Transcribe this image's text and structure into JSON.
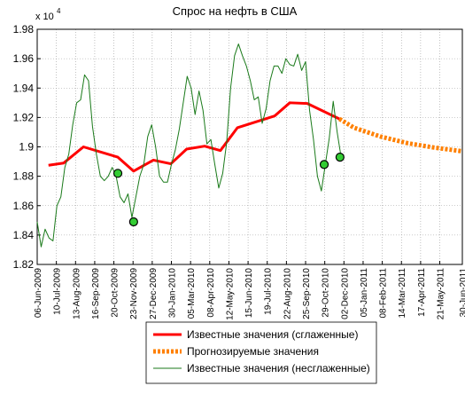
{
  "chart_data": {
    "type": "line",
    "title": "Спрос на нефть в США",
    "y_multiplier": {
      "base": "x 10",
      "exponent": "4"
    },
    "xlim": [
      "2009-06-06",
      "2011-06-30"
    ],
    "xticks": [
      {
        "value": "2009-06-06",
        "label": "06-Jun-2009"
      },
      {
        "value": "2009-07-10",
        "label": "10-Jul-2009"
      },
      {
        "value": "2009-08-13",
        "label": "13-Aug-2009"
      },
      {
        "value": "2009-09-16",
        "label": "16-Sep-2009"
      },
      {
        "value": "2009-10-20",
        "label": "20-Oct-2009"
      },
      {
        "value": "2009-11-23",
        "label": "23-Nov-2009"
      },
      {
        "value": "2009-12-27",
        "label": "27-Dec-2009"
      },
      {
        "value": "2010-01-30",
        "label": "30-Jan-2010"
      },
      {
        "value": "2010-03-05",
        "label": "05-Mar-2010"
      },
      {
        "value": "2010-04-08",
        "label": "08-Apr-2010"
      },
      {
        "value": "2010-05-12",
        "label": "12-May-2010"
      },
      {
        "value": "2010-06-15",
        "label": "15-Jun-2010"
      },
      {
        "value": "2010-07-19",
        "label": "19-Jul-2010"
      },
      {
        "value": "2010-08-22",
        "label": "22-Aug-2010"
      },
      {
        "value": "2010-09-25",
        "label": "25-Sep-2010"
      },
      {
        "value": "2010-10-29",
        "label": "29-Oct-2010"
      },
      {
        "value": "2010-12-02",
        "label": "02-Dec-2010"
      },
      {
        "value": "2011-01-05",
        "label": "05-Jan-2011"
      },
      {
        "value": "2011-02-08",
        "label": "08-Feb-2011"
      },
      {
        "value": "2011-03-14",
        "label": "14-Mar-2011"
      },
      {
        "value": "2011-04-17",
        "label": "17-Apr-2011"
      },
      {
        "value": "2011-05-21",
        "label": "21-May-2011"
      },
      {
        "value": "2011-06-30",
        "label": "30-Jun-2011"
      }
    ],
    "ylim": [
      1.82,
      1.98
    ],
    "yticks": [
      {
        "value": 1.82,
        "label": "1.82"
      },
      {
        "value": 1.84,
        "label": "1.84"
      },
      {
        "value": 1.86,
        "label": "1.86"
      },
      {
        "value": 1.88,
        "label": "1.88"
      },
      {
        "value": 1.9,
        "label": "1.9"
      },
      {
        "value": 1.92,
        "label": "1.92"
      },
      {
        "value": 1.94,
        "label": "1.94"
      },
      {
        "value": 1.96,
        "label": "1.96"
      },
      {
        "value": 1.98,
        "label": "1.98"
      }
    ],
    "grid": true,
    "legend": "bottom",
    "series": [
      {
        "name": "Известные значения (сглаженные)",
        "color": "#ff0000",
        "width": 3,
        "dashed": false,
        "x": [
          "2009-06-26",
          "2009-07-23",
          "2009-08-27",
          "2009-10-27",
          "2009-11-24",
          "2009-12-29",
          "2010-01-29",
          "2010-02-26",
          "2010-03-30",
          "2010-04-27",
          "2010-05-27",
          "2010-08-01",
          "2010-08-28",
          "2010-09-28",
          "2010-11-24"
        ],
        "values": [
          1.8875,
          1.889,
          1.9,
          1.893,
          1.8835,
          1.891,
          1.8885,
          1.8985,
          1.9005,
          1.8975,
          1.913,
          1.921,
          1.93,
          1.9295,
          1.919
        ]
      },
      {
        "name": "Прогнозируемые значения",
        "color": "#ff8000",
        "width": 5,
        "dashed": true,
        "x": [
          "2010-11-24",
          "2010-12-20",
          "2011-02-05",
          "2011-03-25",
          "2011-05-11",
          "2011-06-30"
        ],
        "values": [
          1.919,
          1.913,
          1.907,
          1.9025,
          1.8995,
          1.897
        ]
      },
      {
        "name": "Известные значения (несглаженные)",
        "color": "#1a7a1a",
        "width": 1,
        "dashed": false,
        "x": [
          "2009-06-06",
          "2009-06-13",
          "2009-06-20",
          "2009-06-27",
          "2009-07-04",
          "2009-07-11",
          "2009-07-18",
          "2009-07-25",
          "2009-08-01",
          "2009-08-08",
          "2009-08-15",
          "2009-08-22",
          "2009-08-29",
          "2009-09-05",
          "2009-09-12",
          "2009-09-19",
          "2009-09-26",
          "2009-10-03",
          "2009-10-10",
          "2009-10-17",
          "2009-10-24",
          "2009-10-31",
          "2009-11-07",
          "2009-11-14",
          "2009-11-21",
          "2009-11-28",
          "2009-12-05",
          "2009-12-12",
          "2009-12-19",
          "2009-12-26",
          "2010-01-02",
          "2010-01-09",
          "2010-01-16",
          "2010-01-23",
          "2010-01-30",
          "2010-02-06",
          "2010-02-13",
          "2010-02-20",
          "2010-02-27",
          "2010-03-06",
          "2010-03-13",
          "2010-03-20",
          "2010-03-27",
          "2010-04-03",
          "2010-04-10",
          "2010-04-17",
          "2010-04-24",
          "2010-05-01",
          "2010-05-08",
          "2010-05-15",
          "2010-05-22",
          "2010-05-29",
          "2010-06-05",
          "2010-06-12",
          "2010-06-19",
          "2010-06-26",
          "2010-07-03",
          "2010-07-10",
          "2010-07-17",
          "2010-07-24",
          "2010-07-31",
          "2010-08-07",
          "2010-08-14",
          "2010-08-21",
          "2010-08-28",
          "2010-09-04",
          "2010-09-11",
          "2010-09-18",
          "2010-09-25",
          "2010-10-02",
          "2010-10-09",
          "2010-10-16",
          "2010-10-23",
          "2010-10-30",
          "2010-11-06",
          "2010-11-13",
          "2010-11-20",
          "2010-11-27"
        ],
        "values": [
          1.849,
          1.832,
          1.844,
          1.838,
          1.836,
          1.86,
          1.866,
          1.886,
          1.895,
          1.915,
          1.93,
          1.932,
          1.949,
          1.945,
          1.914,
          1.895,
          1.88,
          1.877,
          1.88,
          1.886,
          1.88,
          1.866,
          1.862,
          1.868,
          1.852,
          1.866,
          1.88,
          1.888,
          1.907,
          1.915,
          1.9,
          1.88,
          1.876,
          1.876,
          1.888,
          1.898,
          1.912,
          1.93,
          1.948,
          1.94,
          1.922,
          1.938,
          1.925,
          1.902,
          1.905,
          1.888,
          1.872,
          1.882,
          1.903,
          1.94,
          1.962,
          1.97,
          1.962,
          1.955,
          1.945,
          1.932,
          1.934,
          1.916,
          1.926,
          1.945,
          1.955,
          1.955,
          1.95,
          1.96,
          1.956,
          1.955,
          1.963,
          1.952,
          1.958,
          1.925,
          1.905,
          1.88,
          1.87,
          1.888,
          1.906,
          1.931,
          1.91,
          1.893
        ]
      }
    ],
    "markers": {
      "color": "#33cc33",
      "edge": "#000000",
      "x": [
        "2009-10-27",
        "2009-11-24",
        "2010-10-28",
        "2010-11-25"
      ],
      "values": [
        1.882,
        1.849,
        1.888,
        1.893
      ]
    }
  }
}
